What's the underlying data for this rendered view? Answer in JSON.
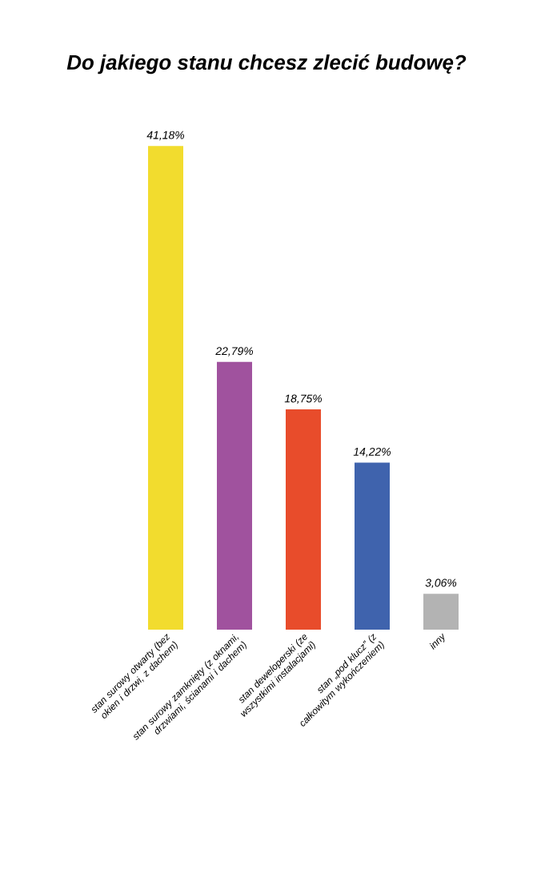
{
  "chart_data": {
    "type": "bar",
    "title": "Do jakiego stanu chcesz zlecić budowę?",
    "categories": [
      "stan surowy otwarty (bez okien i drzwi, z dachem)",
      "stan surowy zamknięty (z oknami, drzwiami, ścianami i dachem)",
      "stan deweloperski (ze wszystkimi instalacjami)",
      "stan „pod klucz” (z całkowitym wykończeniem)",
      "inny"
    ],
    "values": [
      41.18,
      22.79,
      18.75,
      14.22,
      3.06
    ],
    "value_labels": [
      "41,18%",
      "22,79%",
      "18,75%",
      "14,22%",
      "3,06%"
    ],
    "colors": [
      "#f2dc2e",
      "#a0529e",
      "#e84c2b",
      "#3f63ad",
      "#b3b3b3"
    ]
  }
}
